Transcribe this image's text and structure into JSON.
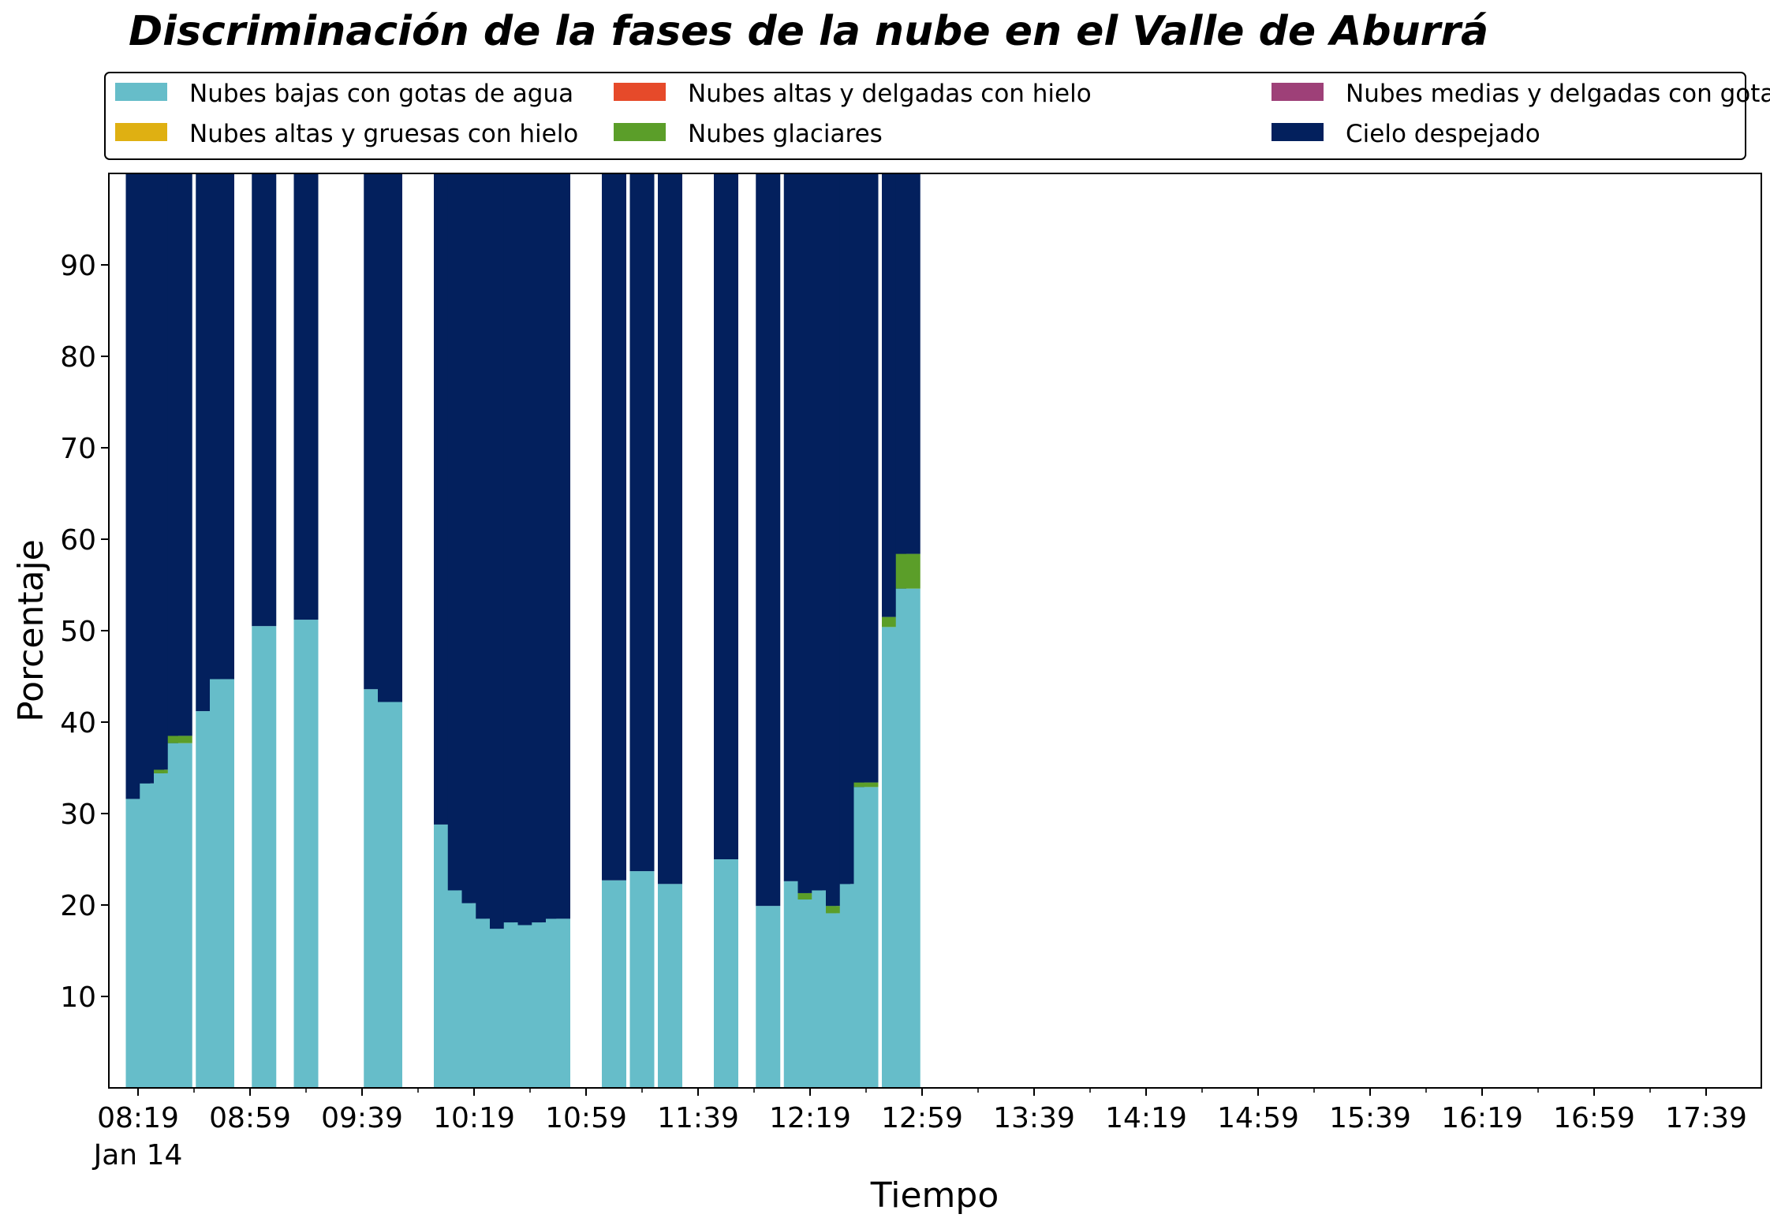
{
  "chart_data": {
    "type": "bar",
    "stacked": true,
    "title": "Discriminación de la fases de la nube en el Valle de Aburrá",
    "xlabel": "Tiempo",
    "ylabel": "Porcentaje",
    "ylim": [
      0,
      100
    ],
    "yticks": [
      10,
      20,
      30,
      40,
      50,
      60,
      70,
      80,
      90
    ],
    "grid": false,
    "legend_position": "top",
    "x_start": "08:19",
    "x_end": "17:59",
    "x_major_ticks": [
      {
        "time": "08:19",
        "label": "08:19",
        "sublabel": "Jan 14"
      },
      {
        "time": "08:59",
        "label": "08:59"
      },
      {
        "time": "09:39",
        "label": "09:39"
      },
      {
        "time": "10:19",
        "label": "10:19"
      },
      {
        "time": "10:59",
        "label": "10:59"
      },
      {
        "time": "11:39",
        "label": "11:39"
      },
      {
        "time": "12:19",
        "label": "12:19"
      },
      {
        "time": "12:59",
        "label": "12:59"
      },
      {
        "time": "13:39",
        "label": "13:39"
      },
      {
        "time": "14:19",
        "label": "14:19"
      },
      {
        "time": "14:59",
        "label": "14:59"
      },
      {
        "time": "15:39",
        "label": "15:39"
      },
      {
        "time": "16:19",
        "label": "16:19"
      },
      {
        "time": "16:59",
        "label": "16:59"
      },
      {
        "time": "17:39",
        "label": "17:39"
      }
    ],
    "series": [
      {
        "name": "Nubes bajas con gotas de agua",
        "color": "#66bdc9"
      },
      {
        "name": "Nubes altas y gruesas con hielo",
        "color": "#dfb012"
      },
      {
        "name": "Nubes altas y delgadas con hielo",
        "color": "#e64a2a"
      },
      {
        "name": "Nubes glaciares",
        "color": "#5b9e29"
      },
      {
        "name": "Nubes medias y delgadas con gotas de agua",
        "color": "#9e4078"
      },
      {
        "name": "Cielo despejado",
        "color": "#03205d"
      }
    ],
    "bars": [
      {
        "time": "08:19",
        "values": [
          31.6,
          0,
          0,
          0,
          0,
          68.4
        ]
      },
      {
        "time": "08:24",
        "values": [
          33.3,
          0,
          0,
          0,
          0,
          66.7
        ]
      },
      {
        "time": "08:29",
        "values": [
          34.4,
          0,
          0,
          0.4,
          0,
          65.2
        ]
      },
      {
        "time": "08:34",
        "values": [
          37.7,
          0,
          0,
          0.8,
          0,
          61.5
        ]
      },
      {
        "time": "08:44",
        "values": [
          41.2,
          0,
          0,
          0,
          0,
          58.8
        ]
      },
      {
        "time": "08:49",
        "values": [
          44.7,
          0,
          0,
          0,
          0,
          55.3
        ]
      },
      {
        "time": "09:04",
        "values": [
          50.5,
          0,
          0,
          0,
          0,
          49.5
        ]
      },
      {
        "time": "09:19",
        "values": [
          51.2,
          0,
          0,
          0,
          0,
          48.8
        ]
      },
      {
        "time": "09:44",
        "values": [
          43.6,
          0,
          0,
          0,
          0,
          56.4
        ]
      },
      {
        "time": "09:49",
        "values": [
          42.2,
          0,
          0,
          0,
          0,
          57.8
        ]
      },
      {
        "time": "10:09",
        "values": [
          28.8,
          0,
          0,
          0,
          0,
          71.2
        ]
      },
      {
        "time": "10:14",
        "values": [
          21.6,
          0,
          0,
          0,
          0,
          78.4
        ]
      },
      {
        "time": "10:19",
        "values": [
          20.2,
          0,
          0,
          0,
          0,
          79.8
        ]
      },
      {
        "time": "10:24",
        "values": [
          18.5,
          0,
          0,
          0,
          0,
          81.5
        ]
      },
      {
        "time": "10:29",
        "values": [
          17.4,
          0,
          0,
          0,
          0,
          82.6
        ]
      },
      {
        "time": "10:34",
        "values": [
          18.1,
          0,
          0,
          0,
          0,
          81.9
        ]
      },
      {
        "time": "10:39",
        "values": [
          17.8,
          0,
          0,
          0,
          0,
          82.2
        ]
      },
      {
        "time": "10:44",
        "values": [
          18.1,
          0,
          0,
          0,
          0,
          81.9
        ]
      },
      {
        "time": "10:49",
        "values": [
          18.5,
          0,
          0,
          0,
          0,
          81.5
        ]
      },
      {
        "time": "11:09",
        "values": [
          22.7,
          0,
          0,
          0,
          0,
          77.3
        ]
      },
      {
        "time": "11:19",
        "values": [
          23.7,
          0,
          0,
          0,
          0,
          76.3
        ]
      },
      {
        "time": "11:29",
        "values": [
          22.3,
          0,
          0,
          0,
          0,
          77.7
        ]
      },
      {
        "time": "11:49",
        "values": [
          25.0,
          0,
          0,
          0,
          0,
          75.0
        ]
      },
      {
        "time": "12:04",
        "values": [
          19.9,
          0,
          0,
          0,
          0,
          80.1
        ]
      },
      {
        "time": "12:14",
        "values": [
          22.6,
          0,
          0,
          0,
          0,
          77.4
        ]
      },
      {
        "time": "12:19",
        "values": [
          20.6,
          0,
          0,
          0.7,
          0,
          78.7
        ]
      },
      {
        "time": "12:24",
        "values": [
          21.6,
          0,
          0,
          0,
          0,
          78.4
        ]
      },
      {
        "time": "12:29",
        "values": [
          19.1,
          0,
          0,
          0.8,
          0,
          80.1
        ]
      },
      {
        "time": "12:34",
        "values": [
          22.3,
          0,
          0,
          0,
          0,
          77.7
        ]
      },
      {
        "time": "12:39",
        "values": [
          32.9,
          0,
          0,
          0.5,
          0,
          66.6
        ]
      },
      {
        "time": "12:49",
        "values": [
          50.4,
          0,
          0,
          1.1,
          0,
          48.5
        ]
      },
      {
        "time": "12:54",
        "values": [
          54.6,
          0,
          0,
          3.8,
          0,
          41.6
        ]
      }
    ]
  }
}
